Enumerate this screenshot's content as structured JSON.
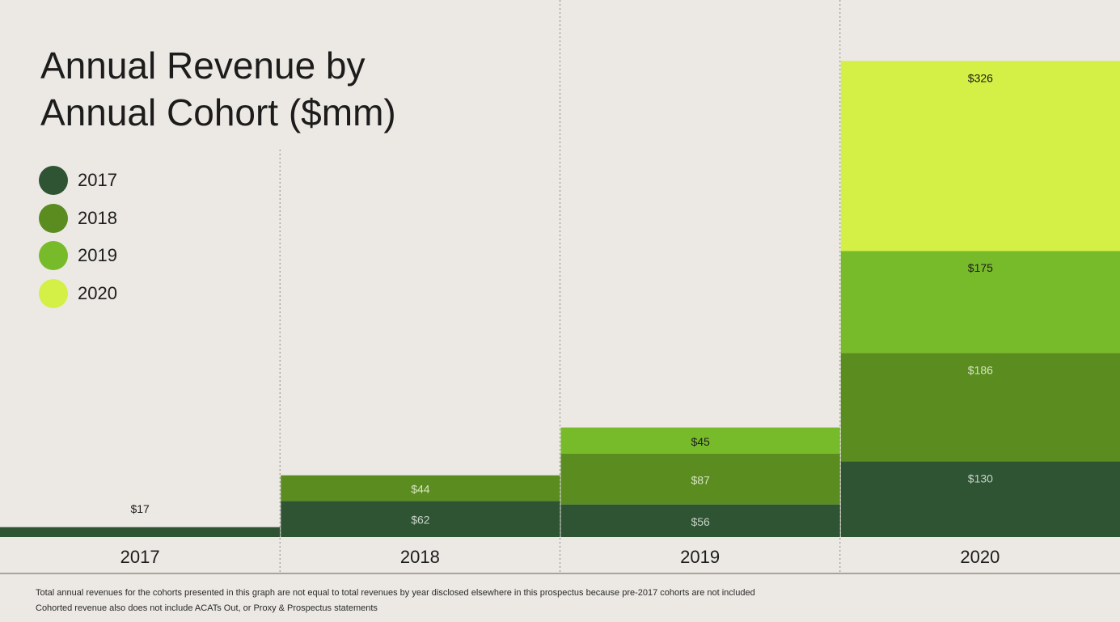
{
  "title_line1": "Annual Revenue by",
  "title_line2": "Annual Cohort ($mm)",
  "footnote_line1": "Total annual revenues for the cohorts presented in this graph are not equal to total revenues by year disclosed elsewhere in this prospectus because pre-2017 cohorts are not included",
  "footnote_line2": "Cohorted revenue also does not include ACATs Out, or Proxy & Prospectus statements",
  "chart_data": {
    "type": "bar",
    "stacked": true,
    "title": "Annual Revenue by Annual Cohort ($mm)",
    "categories": [
      "2017",
      "2018",
      "2019",
      "2020"
    ],
    "legend_position": "left",
    "series": [
      {
        "name": "2017",
        "values": [
          17,
          62,
          56,
          130
        ],
        "labels": [
          "$17",
          "$62",
          "$56",
          "$130"
        ],
        "color": "#2e5434",
        "label_color": "#c9d3c6"
      },
      {
        "name": "2018",
        "values": [
          0,
          44,
          87,
          186
        ],
        "labels": [
          "",
          "$44",
          "$87",
          "$186"
        ],
        "color": "#5a8c20",
        "label_color": "#d9e6c4"
      },
      {
        "name": "2019",
        "values": [
          0,
          0,
          45,
          175
        ],
        "labels": [
          "",
          "",
          "$45",
          "$175"
        ],
        "color": "#78bb2a",
        "label_color": "#1c1c1c"
      },
      {
        "name": "2020",
        "values": [
          0,
          0,
          0,
          326
        ],
        "labels": [
          "",
          "",
          "",
          "$326"
        ],
        "color": "#d4ef45",
        "label_color": "#1c1c1c"
      }
    ],
    "first_label_color": "#1c1c1c"
  }
}
